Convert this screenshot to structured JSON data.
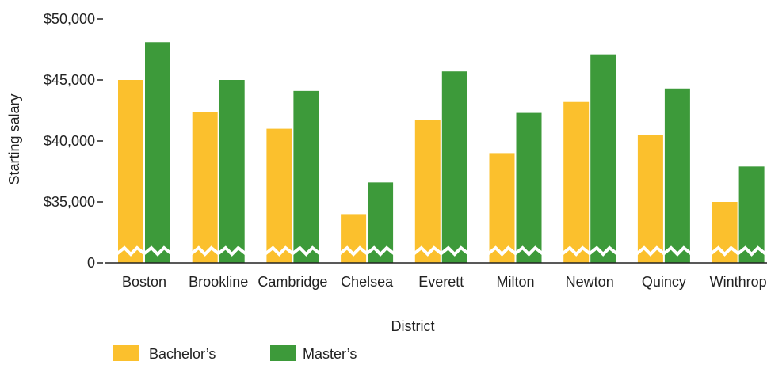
{
  "chart_data": {
    "type": "bar",
    "title": "",
    "xlabel": "District",
    "ylabel": "Starting salary",
    "categories": [
      "Boston",
      "Brookline",
      "Cambridge",
      "Chelsea",
      "Everett",
      "Milton",
      "Newton",
      "Quincy",
      "Winthrop"
    ],
    "series": [
      {
        "name": "Bachelor’s",
        "color": "#FBC02D",
        "values": [
          45000,
          42400,
          41000,
          34000,
          41700,
          39000,
          43200,
          40500,
          35000
        ]
      },
      {
        "name": "Master’s",
        "color": "#3D9A3A",
        "values": [
          48100,
          45000,
          44100,
          36600,
          45700,
          42300,
          47100,
          44300,
          37900
        ]
      }
    ],
    "y_ticks": [
      {
        "value": 0,
        "label": "0"
      },
      {
        "value": 35000,
        "label": "$35,000"
      },
      {
        "value": 40000,
        "label": "$40,000"
      },
      {
        "value": 45000,
        "label": "$45,000"
      },
      {
        "value": 50000,
        "label": "$50,000"
      }
    ],
    "ylim": [
      0,
      50000
    ],
    "axis_break": true,
    "grid": false,
    "legend_position": "bottom-left"
  }
}
